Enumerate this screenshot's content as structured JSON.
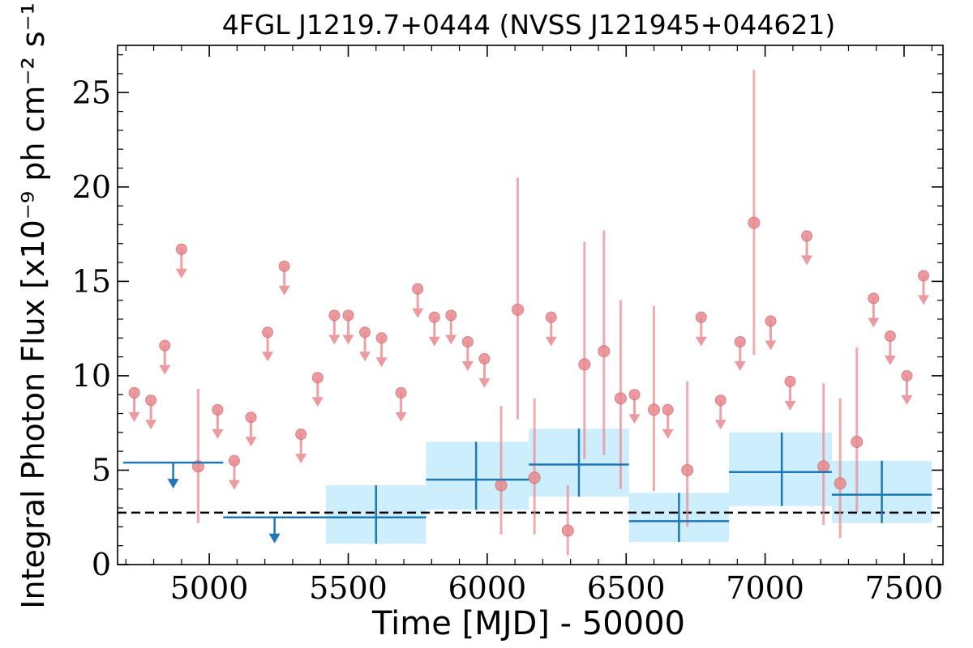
{
  "chart_data": {
    "type": "scatter",
    "title": "4FGL J1219.7+0444 (NVSS J121945+044621)",
    "xlabel": "Time [MJD] - 50000",
    "ylabel": "Integral Photon Flux [x10⁻⁹ ph cm⁻² s⁻¹]",
    "xlim": [
      4670,
      7640
    ],
    "ylim": [
      0,
      27.5
    ],
    "xticks": [
      5000,
      5500,
      6000,
      6500,
      7000,
      7500
    ],
    "yticks": [
      0,
      5,
      10,
      15,
      20,
      25
    ],
    "mean_flux": 2.75,
    "colors": {
      "fine": "#e88a8f",
      "coarse": "#1f77b4",
      "band": "#cdeefc",
      "mean": "#000000"
    },
    "fine_bins": {
      "upper_limits": [
        {
          "x": 4730,
          "y": 9.1
        },
        {
          "x": 4790,
          "y": 8.7
        },
        {
          "x": 4840,
          "y": 11.6
        },
        {
          "x": 4900,
          "y": 16.7
        },
        {
          "x": 5030,
          "y": 8.2
        },
        {
          "x": 5090,
          "y": 5.5
        },
        {
          "x": 5150,
          "y": 7.8
        },
        {
          "x": 5210,
          "y": 12.3
        },
        {
          "x": 5270,
          "y": 15.8
        },
        {
          "x": 5330,
          "y": 6.9
        },
        {
          "x": 5390,
          "y": 9.9
        },
        {
          "x": 5450,
          "y": 13.2
        },
        {
          "x": 5500,
          "y": 13.2
        },
        {
          "x": 5560,
          "y": 12.3
        },
        {
          "x": 5620,
          "y": 12.0
        },
        {
          "x": 5690,
          "y": 9.1
        },
        {
          "x": 5750,
          "y": 14.6
        },
        {
          "x": 5810,
          "y": 13.1
        },
        {
          "x": 5870,
          "y": 13.2
        },
        {
          "x": 5930,
          "y": 11.8
        },
        {
          "x": 5990,
          "y": 10.9
        },
        {
          "x": 6230,
          "y": 13.1
        },
        {
          "x": 6530,
          "y": 9.0
        },
        {
          "x": 6650,
          "y": 8.2
        },
        {
          "x": 6770,
          "y": 13.1
        },
        {
          "x": 6840,
          "y": 8.7
        },
        {
          "x": 6910,
          "y": 11.8
        },
        {
          "x": 7020,
          "y": 12.9
        },
        {
          "x": 7090,
          "y": 9.7
        },
        {
          "x": 7150,
          "y": 17.4
        },
        {
          "x": 7390,
          "y": 14.1
        },
        {
          "x": 7450,
          "y": 12.1
        },
        {
          "x": 7510,
          "y": 10.0
        },
        {
          "x": 7570,
          "y": 15.3
        }
      ],
      "detections": [
        {
          "x": 4960,
          "y": 5.2,
          "ylo": 2.2,
          "yhi": 9.3
        },
        {
          "x": 6050,
          "y": 4.2,
          "ylo": 1.6,
          "yhi": 8.4
        },
        {
          "x": 6110,
          "y": 13.5,
          "ylo": 7.7,
          "yhi": 20.5
        },
        {
          "x": 6170,
          "y": 4.6,
          "ylo": 1.6,
          "yhi": 8.8
        },
        {
          "x": 6290,
          "y": 1.8,
          "ylo": 0.5,
          "yhi": 4.2
        },
        {
          "x": 6350,
          "y": 10.6,
          "ylo": 5.6,
          "yhi": 17.1
        },
        {
          "x": 6420,
          "y": 11.3,
          "ylo": 5.8,
          "yhi": 17.7
        },
        {
          "x": 6480,
          "y": 8.8,
          "ylo": 4.0,
          "yhi": 14.0
        },
        {
          "x": 6600,
          "y": 8.2,
          "ylo": 3.9,
          "yhi": 13.7
        },
        {
          "x": 6720,
          "y": 5.0,
          "ylo": 2.0,
          "yhi": 9.7
        },
        {
          "x": 6960,
          "y": 18.1,
          "ylo": 11.1,
          "yhi": 26.2
        },
        {
          "x": 7210,
          "y": 5.2,
          "ylo": 2.1,
          "yhi": 9.6
        },
        {
          "x": 7270,
          "y": 4.3,
          "ylo": 1.4,
          "yhi": 8.8
        },
        {
          "x": 7330,
          "y": 6.5,
          "ylo": 2.8,
          "yhi": 11.5
        }
      ]
    },
    "coarse_bins": {
      "upper_limits": [
        {
          "x0": 4690,
          "x1": 5050,
          "xc": 4870,
          "y": 5.4
        },
        {
          "x0": 5050,
          "x1": 5420,
          "xc": 5235,
          "y": 2.5
        }
      ],
      "detections": [
        {
          "x0": 5420,
          "x1": 5780,
          "xc": 5600,
          "y": 2.5,
          "ylo": 1.1,
          "yhi": 4.2
        },
        {
          "x0": 5780,
          "x1": 6150,
          "xc": 5960,
          "y": 4.5,
          "ylo": 2.9,
          "yhi": 6.5
        },
        {
          "x0": 6150,
          "x1": 6510,
          "xc": 6330,
          "y": 5.3,
          "ylo": 3.6,
          "yhi": 7.2
        },
        {
          "x0": 6510,
          "x1": 6870,
          "xc": 6690,
          "y": 2.3,
          "ylo": 1.2,
          "yhi": 3.8
        },
        {
          "x0": 6870,
          "x1": 7240,
          "xc": 7060,
          "y": 4.9,
          "ylo": 3.1,
          "yhi": 7.0
        },
        {
          "x0": 7240,
          "x1": 7600,
          "xc": 7420,
          "y": 3.7,
          "ylo": 2.2,
          "yhi": 5.5
        }
      ]
    }
  }
}
